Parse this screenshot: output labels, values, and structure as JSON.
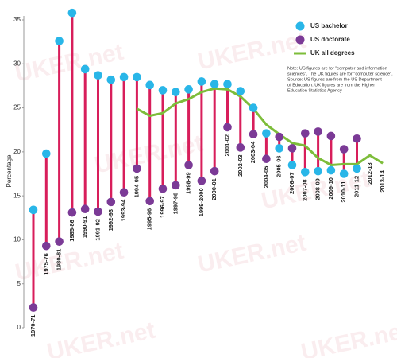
{
  "chart_data": {
    "type": "dumbbell",
    "y_label": "Percentage",
    "watermark": "UKER.net",
    "note": [
      "Note: US figures are for \"computer and information",
      "sciences\". The UK figures are for \"computer science\".",
      "Source: US figures are from the US Department",
      "of Education. UK figures are from the Higher",
      "Education Statistics Agency"
    ],
    "categories": [
      "1970-71",
      "1975-76",
      "1980-81",
      "1985-86",
      "1990-91",
      "1991-92",
      "1992-93",
      "1993-94",
      "1994-95",
      "1995-96",
      "1996-97",
      "1997-98",
      "1998-99",
      "1999-2000",
      "2000-01",
      "2001-02",
      "2002-03",
      "2003-04",
      "2004-05",
      "2005-06",
      "2006-07",
      "2007-08",
      "2008-09",
      "2009-10",
      "2010-11",
      "2011-12",
      "2012-13",
      "2013-14"
    ],
    "series": [
      {
        "name": "US bachelor",
        "color": "#29b6e8",
        "kind": "dot",
        "values": [
          13.4,
          19.8,
          32.6,
          35.8,
          29.4,
          28.7,
          28.2,
          28.5,
          28.5,
          27.6,
          27.0,
          26.8,
          27.1,
          28.0,
          27.7,
          27.7,
          26.9,
          25.0,
          22.1,
          20.4,
          18.5,
          17.7,
          17.8,
          17.9,
          17.5,
          18.1,
          null,
          null
        ]
      },
      {
        "name": "US doctorate",
        "color": "#7b3a96",
        "kind": "dot",
        "values": [
          2.3,
          9.3,
          9.8,
          13.1,
          13.5,
          13.2,
          14.3,
          15.4,
          18.1,
          14.4,
          15.8,
          16.2,
          18.5,
          16.7,
          17.8,
          22.8,
          20.5,
          22.0,
          19.2,
          21.7,
          20.4,
          22.1,
          22.3,
          21.8,
          20.3,
          21.5,
          null,
          null
        ]
      },
      {
        "name": "UK all degrees",
        "color": "#7dbd3a",
        "kind": "line",
        "values": [
          null,
          null,
          null,
          null,
          null,
          null,
          null,
          null,
          24.9,
          24.1,
          24.4,
          25.5,
          26.0,
          26.8,
          27.2,
          27.1,
          26.3,
          24.9,
          23.1,
          22.0,
          21.0,
          20.7,
          19.3,
          18.5,
          18.6,
          18.6,
          19.6,
          18.7
        ]
      }
    ],
    "stem_color": "#d81e5b",
    "ylim": [
      0,
      35
    ],
    "yticks": [
      0,
      5,
      10,
      15,
      20,
      25,
      30,
      35
    ],
    "grid": false,
    "legend": "top-right"
  }
}
